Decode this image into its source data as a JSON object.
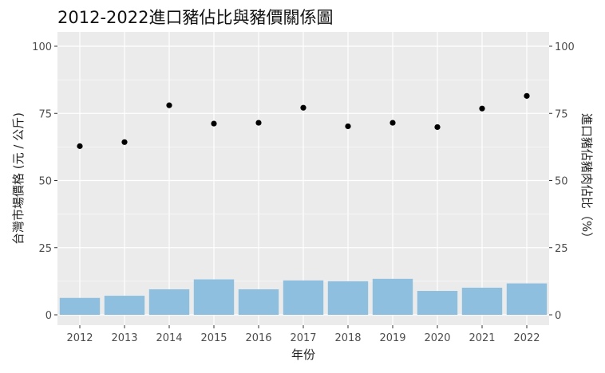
{
  "chart_data": {
    "type": "bar+scatter",
    "title": "2012-2022進口豬佔比與豬價關係圖",
    "xlabel": "年份",
    "ylabel_left": "台灣市場價格 (元 / 公斤)",
    "ylabel_right": "進口豬佔豬肉佔比（%）",
    "categories": [
      "2012",
      "2013",
      "2014",
      "2015",
      "2016",
      "2017",
      "2018",
      "2019",
      "2020",
      "2021",
      "2022"
    ],
    "ylim": [
      0,
      100
    ],
    "yticks": [
      0,
      25,
      50,
      75,
      100
    ],
    "series": [
      {
        "kind": "bar",
        "axis": "right",
        "color": "#8fbfdf",
        "values": [
          6.3,
          7.1,
          9.5,
          13.2,
          9.5,
          12.8,
          12.5,
          13.4,
          8.9,
          10.1,
          11.7
        ]
      },
      {
        "kind": "point",
        "axis": "left",
        "color": "#000000",
        "values": [
          62.8,
          64.3,
          78.0,
          71.2,
          71.5,
          77.1,
          70.2,
          71.5,
          69.9,
          76.8,
          81.5
        ]
      }
    ],
    "panel_color": "#ebebeb",
    "grid": true
  }
}
